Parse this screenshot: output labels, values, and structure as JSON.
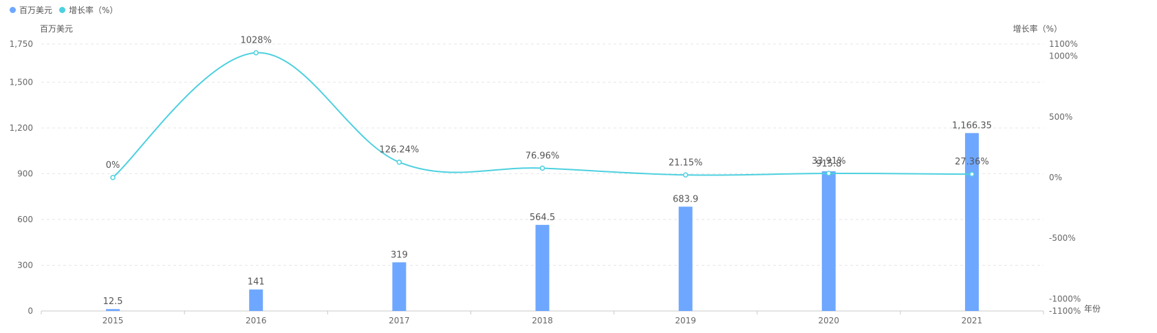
{
  "legend": {
    "items": [
      {
        "label": "百万美元",
        "color": "#6ea7ff"
      },
      {
        "label": "增长率（%）",
        "color": "#4dd0df"
      }
    ]
  },
  "axes": {
    "left_title": "百万美元",
    "right_title": "增长率（%）",
    "x_title": "年份"
  },
  "chart_data": {
    "type": "bar",
    "categories": [
      "2015",
      "2016",
      "2017",
      "2018",
      "2019",
      "2020",
      "2021"
    ],
    "series": [
      {
        "name": "百万美元",
        "type": "bar",
        "axis": "left",
        "values": [
          12.5,
          141,
          319,
          564.5,
          683.9,
          915.8,
          1166.35
        ],
        "labels": [
          "12.5",
          "141",
          "319",
          "564.5",
          "683.9",
          "915.8",
          "1,166.35"
        ],
        "color": "#6ea7ff"
      },
      {
        "name": "增长率（%）",
        "type": "line",
        "axis": "right",
        "values": [
          0,
          1028,
          126.24,
          76.96,
          21.15,
          33.91,
          27.36
        ],
        "labels": [
          "0%",
          "1028%",
          "126.24%",
          "76.96%",
          "21.15%",
          "33.91%",
          "27.36%"
        ],
        "color": "#4dd0df"
      }
    ],
    "left_axis": {
      "min": 0,
      "max": 1750,
      "ticks": [
        0,
        300,
        600,
        900,
        1200,
        1500,
        1750
      ],
      "tick_labels": [
        "0",
        "300",
        "600",
        "900",
        "1,200",
        "1,500",
        "1,750"
      ]
    },
    "right_axis": {
      "min": -1100,
      "max": 1100,
      "ticks": [
        -1100,
        -1000,
        -500,
        0,
        500,
        1000,
        1100
      ],
      "tick_labels": [
        "-1100%",
        "-1000%",
        "-500%",
        "0%",
        "500%",
        "1000%",
        "1100%"
      ]
    },
    "grid": true,
    "legend_position": "top-left"
  }
}
